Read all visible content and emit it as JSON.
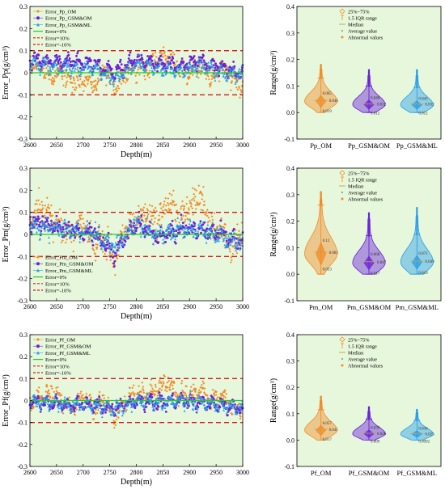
{
  "colors": {
    "bg": "#e6f7dc",
    "om": "#f28c28",
    "gsm_om": "#6a22d8",
    "gsm_ml": "#2a9ee8",
    "ref0": "#22cc22",
    "ref10": "#d81818"
  },
  "chart_data": [
    {
      "type": "scatter",
      "panel": "pp-error",
      "xlabel": "Depth(m)",
      "ylabel": "Error_Pp(g/cm³)",
      "xlim": [
        2600,
        3000
      ],
      "ylim": [
        -0.3,
        0.3
      ],
      "xticks": [
        "2600",
        "2650",
        "2700",
        "2750",
        "2800",
        "2850",
        "2900",
        "2950",
        "3000"
      ],
      "yticks": [
        "-0.3",
        "-0.2",
        "-0.1",
        "0",
        "0.1",
        "0.2",
        "0.3"
      ],
      "legend_position": "top-left",
      "series": [
        {
          "name": "Error_Pp_OM",
          "marker": "diamond",
          "trend": [
            [
              2600,
              0.04
            ],
            [
              2620,
              0.02
            ],
            [
              2640,
              -0.02
            ],
            [
              2660,
              0.0
            ],
            [
              2680,
              -0.05
            ],
            [
              2700,
              -0.02
            ],
            [
              2720,
              -0.06
            ],
            [
              2740,
              0.02
            ],
            [
              2760,
              -0.08
            ],
            [
              2780,
              0.0
            ],
            [
              2800,
              0.03
            ],
            [
              2820,
              0.02
            ],
            [
              2840,
              0.06
            ],
            [
              2860,
              0.08
            ],
            [
              2880,
              0.02
            ],
            [
              2900,
              0.0
            ],
            [
              2920,
              0.04
            ],
            [
              2940,
              -0.03
            ],
            [
              2960,
              0.02
            ],
            [
              2980,
              -0.02
            ],
            [
              3000,
              -0.06
            ]
          ],
          "spread": 0.055
        },
        {
          "name": "Error_Pp_GSM&OM",
          "marker": "circle",
          "trend": [
            [
              2600,
              0.06
            ],
            [
              2640,
              0.05
            ],
            [
              2680,
              0.05
            ],
            [
              2720,
              0.04
            ],
            [
              2760,
              0.0
            ],
            [
              2800,
              0.06
            ],
            [
              2840,
              0.04
            ],
            [
              2880,
              0.03
            ],
            [
              2920,
              0.05
            ],
            [
              2960,
              0.02
            ],
            [
              3000,
              0.0
            ]
          ],
          "spread": 0.03
        },
        {
          "name": "Error_Pp_GSM&ML",
          "marker": "triangle",
          "trend": [
            [
              2600,
              0.04
            ],
            [
              2640,
              0.03
            ],
            [
              2680,
              0.02
            ],
            [
              2720,
              0.02
            ],
            [
              2760,
              -0.03
            ],
            [
              2800,
              0.04
            ],
            [
              2840,
              0.02
            ],
            [
              2880,
              0.01
            ],
            [
              2920,
              0.03
            ],
            [
              2960,
              0.0
            ],
            [
              3000,
              -0.01
            ]
          ],
          "spread": 0.03
        }
      ],
      "reference_lines": [
        {
          "name": "Error=0%",
          "y": 0,
          "color": "ref0"
        },
        {
          "name": "Error=10%",
          "y": 0.1,
          "color": "ref10"
        },
        {
          "name": "Error=-10%",
          "y": -0.1,
          "color": "ref10"
        }
      ]
    },
    {
      "type": "violin",
      "panel": "pp-range",
      "ylabel": "Range(g/cm³)",
      "ylim": [
        -0.1,
        0.4
      ],
      "yticks": [
        "-0.1",
        "0.0",
        "0.1",
        "0.2",
        "0.3",
        "0.4"
      ],
      "legend_position": "top-left",
      "legend": [
        "25%~75%",
        "1.5 IQR range",
        "Median",
        "Average value",
        "Abnormal values"
      ],
      "categories": [
        "Pp_OM",
        "Pp_GSM&OM",
        "Pp_GSM&ML"
      ],
      "boxes": [
        {
          "color": "om",
          "q1": 0.019,
          "q3": 0.065,
          "mean": 0.046,
          "whisker_lo": 0.0,
          "whisker_hi": 0.13,
          "outlier_top": 0.18,
          "labels": [
            "0.065",
            "0.046",
            "0.019"
          ]
        },
        {
          "color": "gsm_om",
          "q1": 0.012,
          "q3": 0.048,
          "mean": 0.032,
          "whisker_lo": 0.0,
          "whisker_hi": 0.1,
          "outlier_top": 0.16,
          "labels": [
            "0.048",
            "0.032",
            "0.012"
          ]
        },
        {
          "color": "gsm_ml",
          "q1": 0.012,
          "q3": 0.045,
          "mean": 0.032,
          "whisker_lo": 0.0,
          "whisker_hi": 0.095,
          "outlier_top": 0.16,
          "labels": [
            "0.045",
            "0.032",
            "0.012"
          ]
        }
      ]
    },
    {
      "type": "scatter",
      "panel": "pm-error",
      "xlabel": "Depth(m)",
      "ylabel": "Error_Pm(g/cm³)",
      "xlim": [
        2600,
        3000
      ],
      "ylim": [
        -0.3,
        0.3
      ],
      "xticks": [
        "2600",
        "2650",
        "2700",
        "2750",
        "2800",
        "2850",
        "2900",
        "2950",
        "3000"
      ],
      "yticks": [
        "-0.3",
        "-0.2",
        "-0.1",
        "0",
        "0.1",
        "0.2",
        "0.3"
      ],
      "legend_position": "bottom-left",
      "series": [
        {
          "name": "Error_Pm_OM",
          "marker": "diamond",
          "trend": [
            [
              2600,
              0.05
            ],
            [
              2620,
              0.14
            ],
            [
              2640,
              0.08
            ],
            [
              2660,
              0.03
            ],
            [
              2680,
              0.0
            ],
            [
              2700,
              0.05
            ],
            [
              2720,
              -0.05
            ],
            [
              2740,
              -0.02
            ],
            [
              2760,
              -0.12
            ],
            [
              2780,
              0.02
            ],
            [
              2800,
              0.06
            ],
            [
              2820,
              0.1
            ],
            [
              2840,
              0.06
            ],
            [
              2860,
              0.15
            ],
            [
              2880,
              0.08
            ],
            [
              2900,
              0.12
            ],
            [
              2920,
              0.18
            ],
            [
              2940,
              0.05
            ],
            [
              2960,
              0.02
            ],
            [
              2980,
              -0.06
            ],
            [
              3000,
              0.0
            ]
          ],
          "spread": 0.09
        },
        {
          "name": "Error_Pm_GSM&OM",
          "marker": "circle",
          "trend": [
            [
              2600,
              0.05
            ],
            [
              2640,
              0.04
            ],
            [
              2680,
              0.02
            ],
            [
              2720,
              0.0
            ],
            [
              2760,
              -0.08
            ],
            [
              2800,
              0.05
            ],
            [
              2840,
              0.0
            ],
            [
              2880,
              0.02
            ],
            [
              2920,
              0.03
            ],
            [
              2960,
              0.0
            ],
            [
              3000,
              -0.04
            ]
          ],
          "spread": 0.05
        },
        {
          "name": "Error_Pm_GSM&ML",
          "marker": "triangle",
          "trend": [
            [
              2600,
              0.04
            ],
            [
              2640,
              0.03
            ],
            [
              2680,
              0.02
            ],
            [
              2720,
              0.0
            ],
            [
              2760,
              -0.06
            ],
            [
              2800,
              0.05
            ],
            [
              2840,
              0.0
            ],
            [
              2880,
              0.02
            ],
            [
              2920,
              0.02
            ],
            [
              2960,
              -0.01
            ],
            [
              3000,
              -0.04
            ]
          ],
          "spread": 0.05
        }
      ],
      "reference_lines": [
        {
          "name": "Error=0%",
          "y": 0,
          "color": "ref0"
        },
        {
          "name": "Error=10%",
          "y": 0.1,
          "color": "ref10"
        },
        {
          "name": "Error=-10%",
          "y": -0.1,
          "color": "ref10"
        }
      ]
    },
    {
      "type": "violin",
      "panel": "pm-range",
      "ylabel": "Range(g/cm³)",
      "ylim": [
        -0.1,
        0.4
      ],
      "yticks": [
        "-0.1",
        "0.0",
        "0.1",
        "0.2",
        "0.3",
        "0.4"
      ],
      "legend_position": "top-left",
      "legend": [
        "25%~75%",
        "1.5 IQR range",
        "Median",
        "Average value",
        "Abnormal values"
      ],
      "categories": [
        "Pm_OM",
        "Pm_GSM&OM",
        "Pm_GSM&ML"
      ],
      "boxes": [
        {
          "color": "om",
          "q1": 0.033,
          "q3": 0.12,
          "mean": 0.083,
          "whisker_lo": 0.0,
          "whisker_hi": 0.26,
          "outlier_top": 0.31,
          "labels": [
            "0.12",
            "0.083",
            "0.033"
          ]
        },
        {
          "color": "gsm_om",
          "q1": 0.017,
          "q3": 0.068,
          "mean": 0.047,
          "whisker_lo": 0.0,
          "whisker_hi": 0.145,
          "outlier_top": 0.23,
          "labels": [
            "0.068",
            "0.047",
            "0.017"
          ]
        },
        {
          "color": "gsm_ml",
          "q1": 0.019,
          "q3": 0.071,
          "mean": 0.049,
          "whisker_lo": 0.0,
          "whisker_hi": 0.15,
          "outlier_top": 0.25,
          "labels": [
            "0.071",
            "0.049",
            "0.019"
          ]
        }
      ]
    },
    {
      "type": "scatter",
      "panel": "pf-error",
      "xlabel": "Depth(m)",
      "ylabel": "Error_Pf(g/cm³)",
      "xlim": [
        2600,
        3000
      ],
      "ylim": [
        -0.3,
        0.3
      ],
      "xticks": [
        "2600",
        "2650",
        "2700",
        "2750",
        "2800",
        "2850",
        "2900",
        "2950",
        "3000"
      ],
      "yticks": [
        "-0.3",
        "-0.2",
        "-0.1",
        "0",
        "0.1",
        "0.2",
        "0.3"
      ],
      "legend_position": "top-left",
      "series": [
        {
          "name": "Error_Pf_OM",
          "marker": "diamond",
          "trend": [
            [
              2600,
              0.0
            ],
            [
              2620,
              0.02
            ],
            [
              2640,
              0.04
            ],
            [
              2660,
              0.0
            ],
            [
              2680,
              -0.04
            ],
            [
              2700,
              0.02
            ],
            [
              2720,
              -0.04
            ],
            [
              2740,
              0.0
            ],
            [
              2760,
              -0.08
            ],
            [
              2780,
              0.0
            ],
            [
              2800,
              0.04
            ],
            [
              2820,
              0.02
            ],
            [
              2840,
              0.05
            ],
            [
              2860,
              0.09
            ],
            [
              2880,
              0.02
            ],
            [
              2900,
              0.03
            ],
            [
              2920,
              0.05
            ],
            [
              2940,
              0.0
            ],
            [
              2960,
              0.02
            ],
            [
              2980,
              -0.03
            ],
            [
              3000,
              -0.04
            ]
          ],
          "spread": 0.05
        },
        {
          "name": "Error_Pf_GSM&OM",
          "marker": "circle",
          "trend": [
            [
              2600,
              0.0
            ],
            [
              2640,
              -0.01
            ],
            [
              2680,
              -0.02
            ],
            [
              2720,
              -0.02
            ],
            [
              2760,
              -0.04
            ],
            [
              2800,
              0.0
            ],
            [
              2840,
              -0.01
            ],
            [
              2880,
              0.0
            ],
            [
              2920,
              -0.01
            ],
            [
              2960,
              -0.02
            ],
            [
              3000,
              -0.04
            ]
          ],
          "spread": 0.03
        },
        {
          "name": "Error_Pf_GSM&ML",
          "marker": "triangle",
          "trend": [
            [
              2600,
              0.0
            ],
            [
              2640,
              -0.01
            ],
            [
              2680,
              -0.02
            ],
            [
              2720,
              -0.02
            ],
            [
              2760,
              -0.04
            ],
            [
              2800,
              0.0
            ],
            [
              2840,
              -0.01
            ],
            [
              2880,
              0.0
            ],
            [
              2920,
              -0.01
            ],
            [
              2960,
              -0.02
            ],
            [
              3000,
              -0.04
            ]
          ],
          "spread": 0.03
        }
      ],
      "reference_lines": [
        {
          "name": "Error=0%",
          "y": 0,
          "color": "ref0"
        },
        {
          "name": "Error=10%",
          "y": 0.1,
          "color": "ref10"
        },
        {
          "name": "Error=-10%",
          "y": -0.1,
          "color": "ref10"
        }
      ]
    },
    {
      "type": "violin",
      "panel": "pf-range",
      "ylabel": "Range(g/cm³)",
      "ylim": [
        -0.1,
        0.4
      ],
      "yticks": [
        "-0.1",
        "0.0",
        "0.1",
        "0.2",
        "0.3",
        "0.4"
      ],
      "legend_position": "top-left",
      "legend": [
        "25%~75%",
        "1.5 IQR range",
        "Median",
        "Average value",
        "Abnormal values"
      ],
      "categories": [
        "Pf_OM",
        "Pf_GSM&OM",
        "Pf_GSM&ML"
      ],
      "boxes": [
        {
          "color": "om",
          "q1": 0.017,
          "q3": 0.057,
          "mean": 0.041,
          "whisker_lo": 0.0,
          "whisker_hi": 0.115,
          "outlier_top": 0.165,
          "labels": [
            "0.057",
            "0.041",
            "0.017"
          ]
        },
        {
          "color": "gsm_om",
          "q1": 0.009,
          "q3": 0.039,
          "mean": 0.026,
          "whisker_lo": 0.0,
          "whisker_hi": 0.08,
          "outlier_top": 0.125,
          "labels": [
            "0.039",
            "0.026",
            "0.009"
          ]
        },
        {
          "color": "gsm_ml",
          "q1": 0.0092,
          "q3": 0.036,
          "mean": 0.025,
          "whisker_lo": 0.0,
          "whisker_hi": 0.075,
          "outlier_top": 0.115,
          "labels": [
            "0.036",
            "0.025",
            "0.0092"
          ]
        }
      ]
    }
  ]
}
